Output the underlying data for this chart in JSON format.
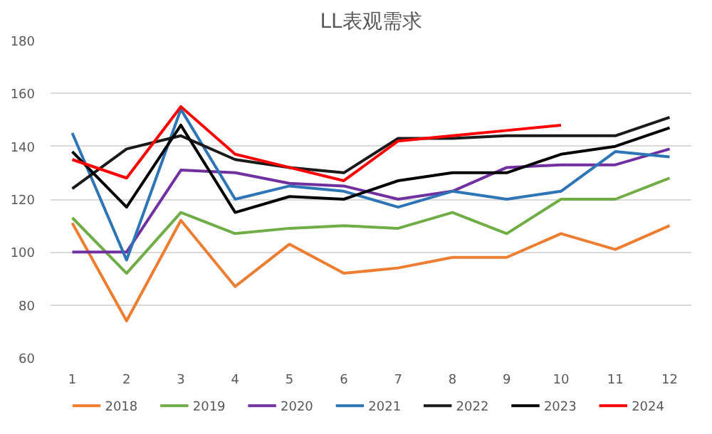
{
  "chart_data": {
    "type": "line",
    "title": "LL表观需求",
    "x": [
      1,
      2,
      3,
      4,
      5,
      6,
      7,
      8,
      9,
      10,
      11,
      12
    ],
    "xlim": [
      0.6,
      12.4
    ],
    "xticks": [
      1,
      2,
      3,
      4,
      5,
      6,
      7,
      8,
      9,
      10,
      11,
      12
    ],
    "ylim": [
      60,
      180
    ],
    "yticks": [
      60,
      80,
      100,
      120,
      140,
      160,
      180
    ],
    "grid": "y",
    "legend": "bottom",
    "marker": "none",
    "line_style": "solid",
    "series": [
      {
        "name": "2018",
        "color": "#ed7d31",
        "values": [
          111,
          74,
          112,
          87,
          103,
          92,
          94,
          98,
          98,
          107,
          101,
          110
        ]
      },
      {
        "name": "2019",
        "color": "#70ad47",
        "values": [
          113,
          92,
          115,
          107,
          109,
          110,
          109,
          115,
          107,
          120,
          120,
          128
        ]
      },
      {
        "name": "2020",
        "color": "#7030a0",
        "values": [
          100,
          100,
          131,
          130,
          126,
          125,
          120,
          123,
          132,
          133,
          133,
          139
        ]
      },
      {
        "name": "2021",
        "color": "#2e75b6",
        "values": [
          145,
          97,
          154,
          120,
          125,
          123,
          117,
          123,
          120,
          123,
          138,
          136
        ]
      },
      {
        "name": "2022",
        "color": "#1a1a1a",
        "values": [
          124,
          139,
          144,
          135,
          132,
          130,
          143,
          143,
          144,
          144,
          144,
          151
        ]
      },
      {
        "name": "2023",
        "color": "#000000",
        "values": [
          138,
          117,
          148,
          115,
          121,
          120,
          127,
          130,
          130,
          137,
          140,
          147
        ]
      },
      {
        "name": "2024",
        "color": "#ff0000",
        "values": [
          135,
          128,
          155,
          137,
          132,
          127,
          142,
          144,
          146,
          148,
          null,
          null
        ]
      }
    ]
  }
}
